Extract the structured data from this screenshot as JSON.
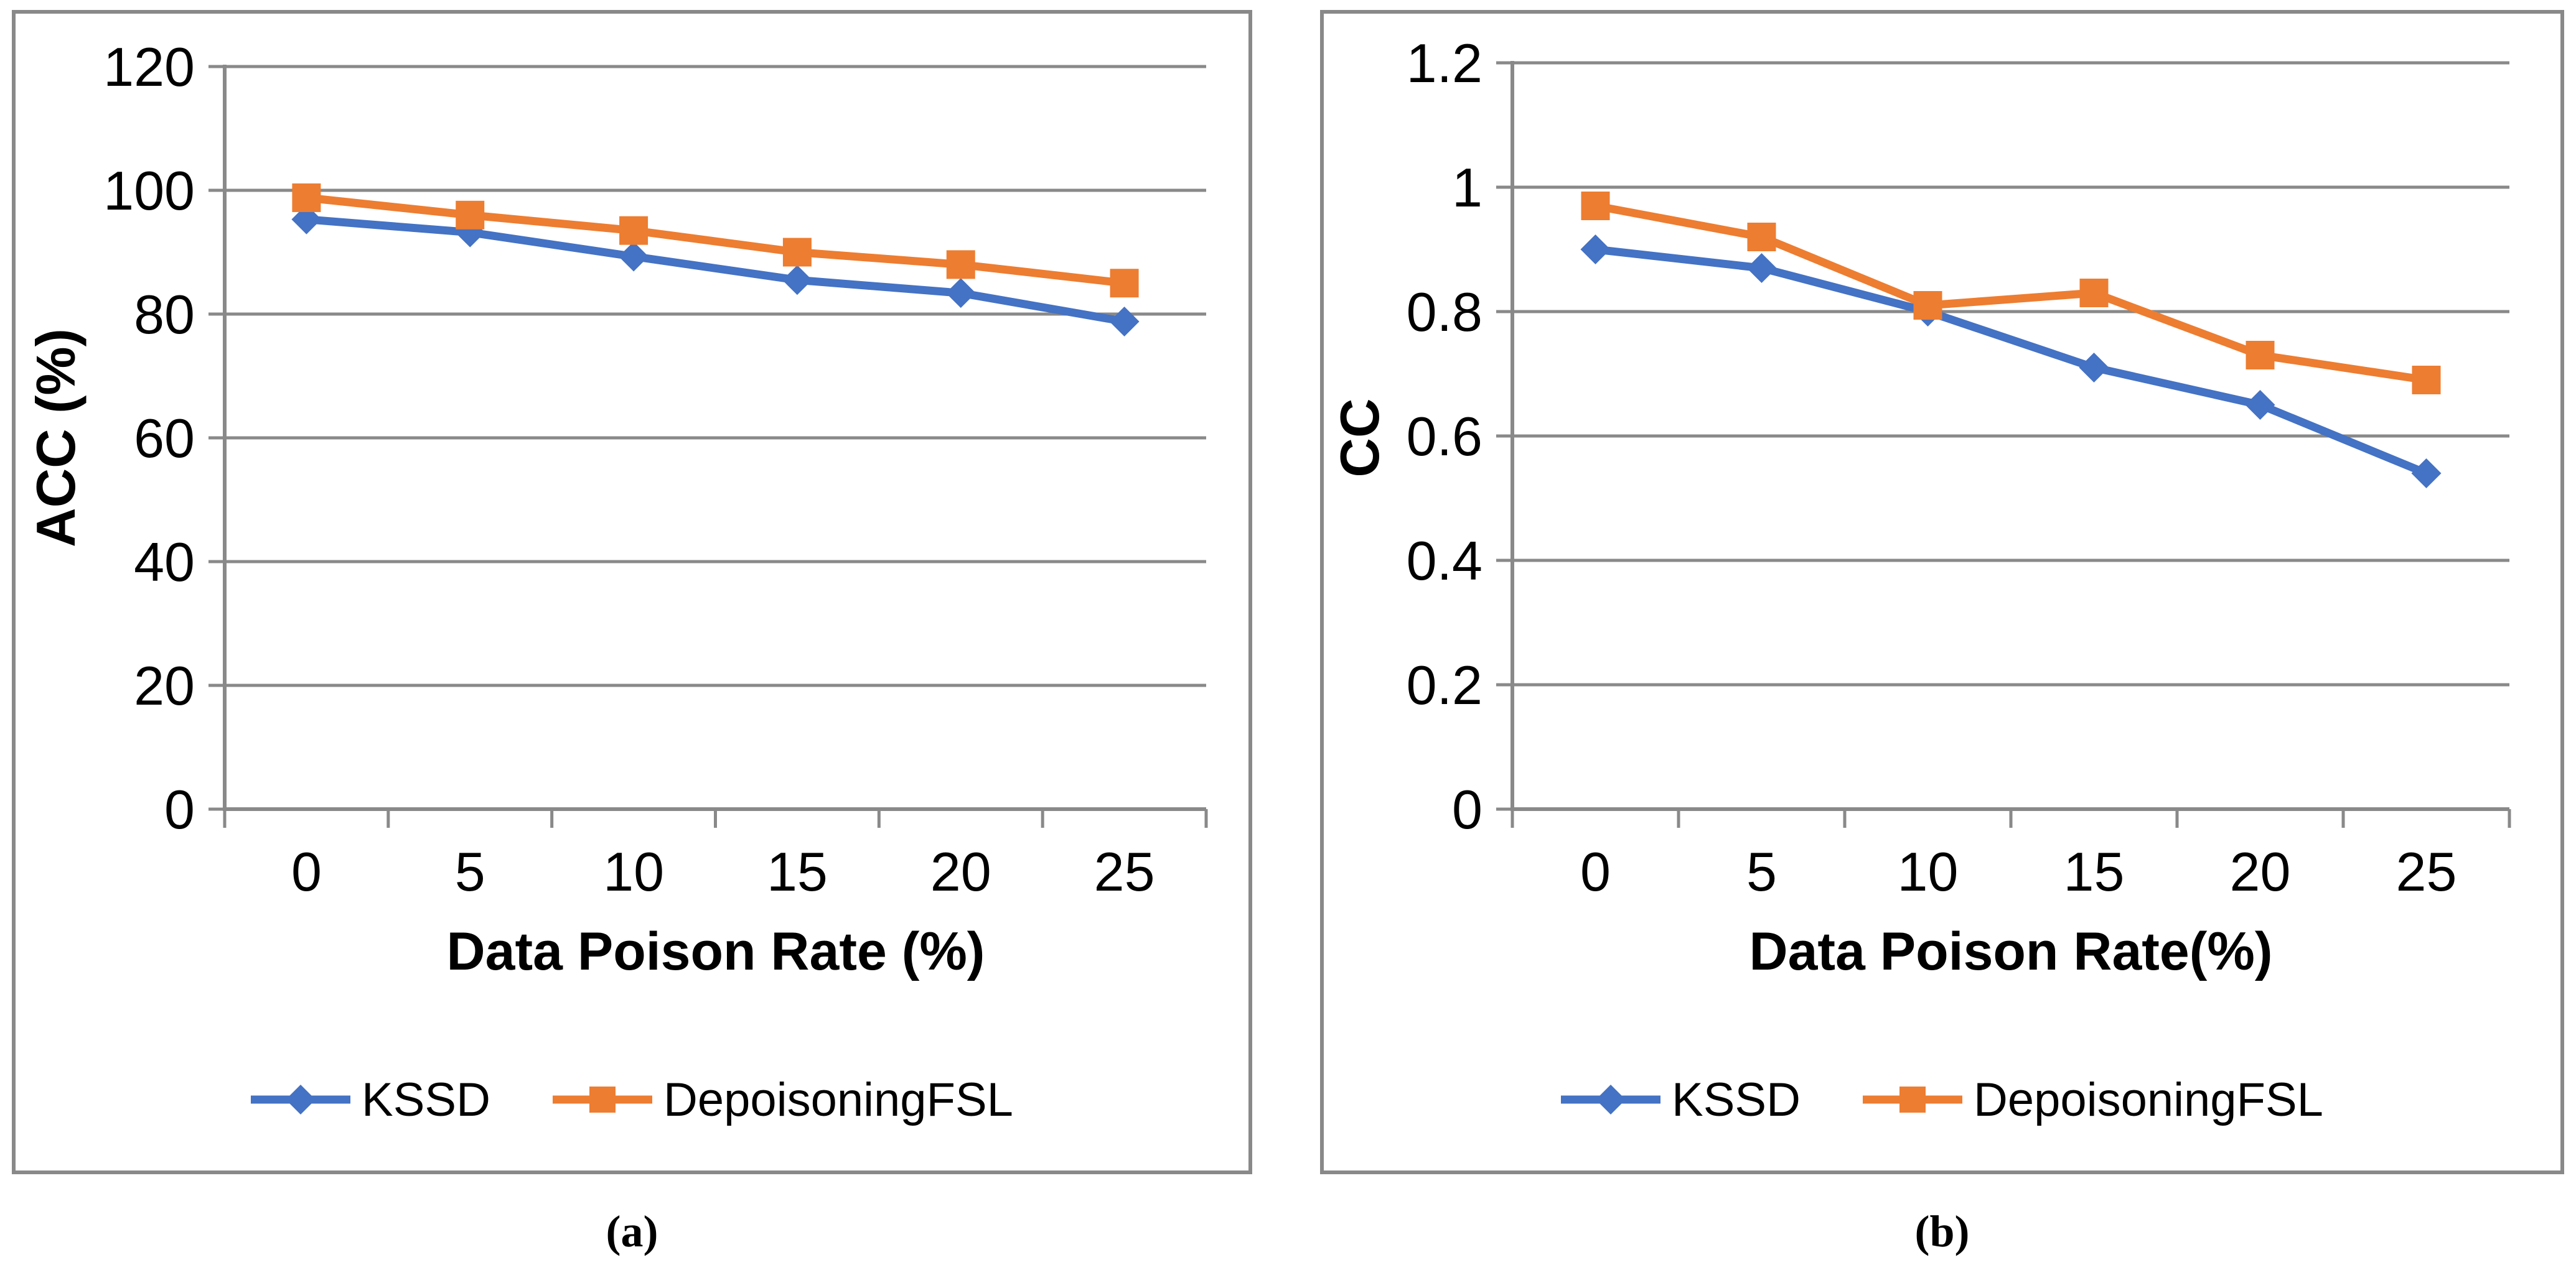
{
  "figure": {
    "background": "#ffffff",
    "grid_color": "#898989",
    "text_color": "#000000"
  },
  "chart_data": [
    {
      "type": "line",
      "panel": "left",
      "caption": "(a)",
      "categories": [
        0,
        5,
        10,
        15,
        20,
        25
      ],
      "series": [
        {
          "name": "KSSD",
          "color": "#4472C4",
          "marker": "diamond",
          "values": [
            95.3,
            93.2,
            89.3,
            85.5,
            83.4,
            78.8
          ]
        },
        {
          "name": "DepoisoningFSL",
          "color": "#ED7D31",
          "marker": "square",
          "values": [
            98.8,
            96.0,
            93.5,
            90.0,
            88.0,
            85.0
          ]
        }
      ],
      "xlabel": "Data Poison Rate (%)",
      "ylabel": "ACC (%)",
      "ylim": [
        0,
        120
      ],
      "y_ticks": [
        "0",
        "20",
        "40",
        "60",
        "80",
        "100",
        "120"
      ],
      "grid": true,
      "legend_position": "bottom"
    },
    {
      "type": "line",
      "panel": "right",
      "caption": "(b)",
      "categories": [
        0,
        5,
        10,
        15,
        20,
        25
      ],
      "series": [
        {
          "name": "KSSD",
          "color": "#4472C4",
          "marker": "diamond",
          "values": [
            0.9,
            0.87,
            0.8,
            0.71,
            0.65,
            0.54
          ]
        },
        {
          "name": "DepoisoningFSL",
          "color": "#ED7D31",
          "marker": "square",
          "values": [
            0.97,
            0.92,
            0.81,
            0.83,
            0.73,
            0.69
          ]
        }
      ],
      "xlabel": "Data Poison Rate(%)",
      "ylabel": "CC",
      "ylim": [
        0,
        1.2
      ],
      "y_ticks": [
        "0",
        "0.2",
        "0.4",
        "0.6",
        "0.8",
        "1",
        "1.2"
      ],
      "grid": true,
      "legend_position": "bottom"
    }
  ]
}
